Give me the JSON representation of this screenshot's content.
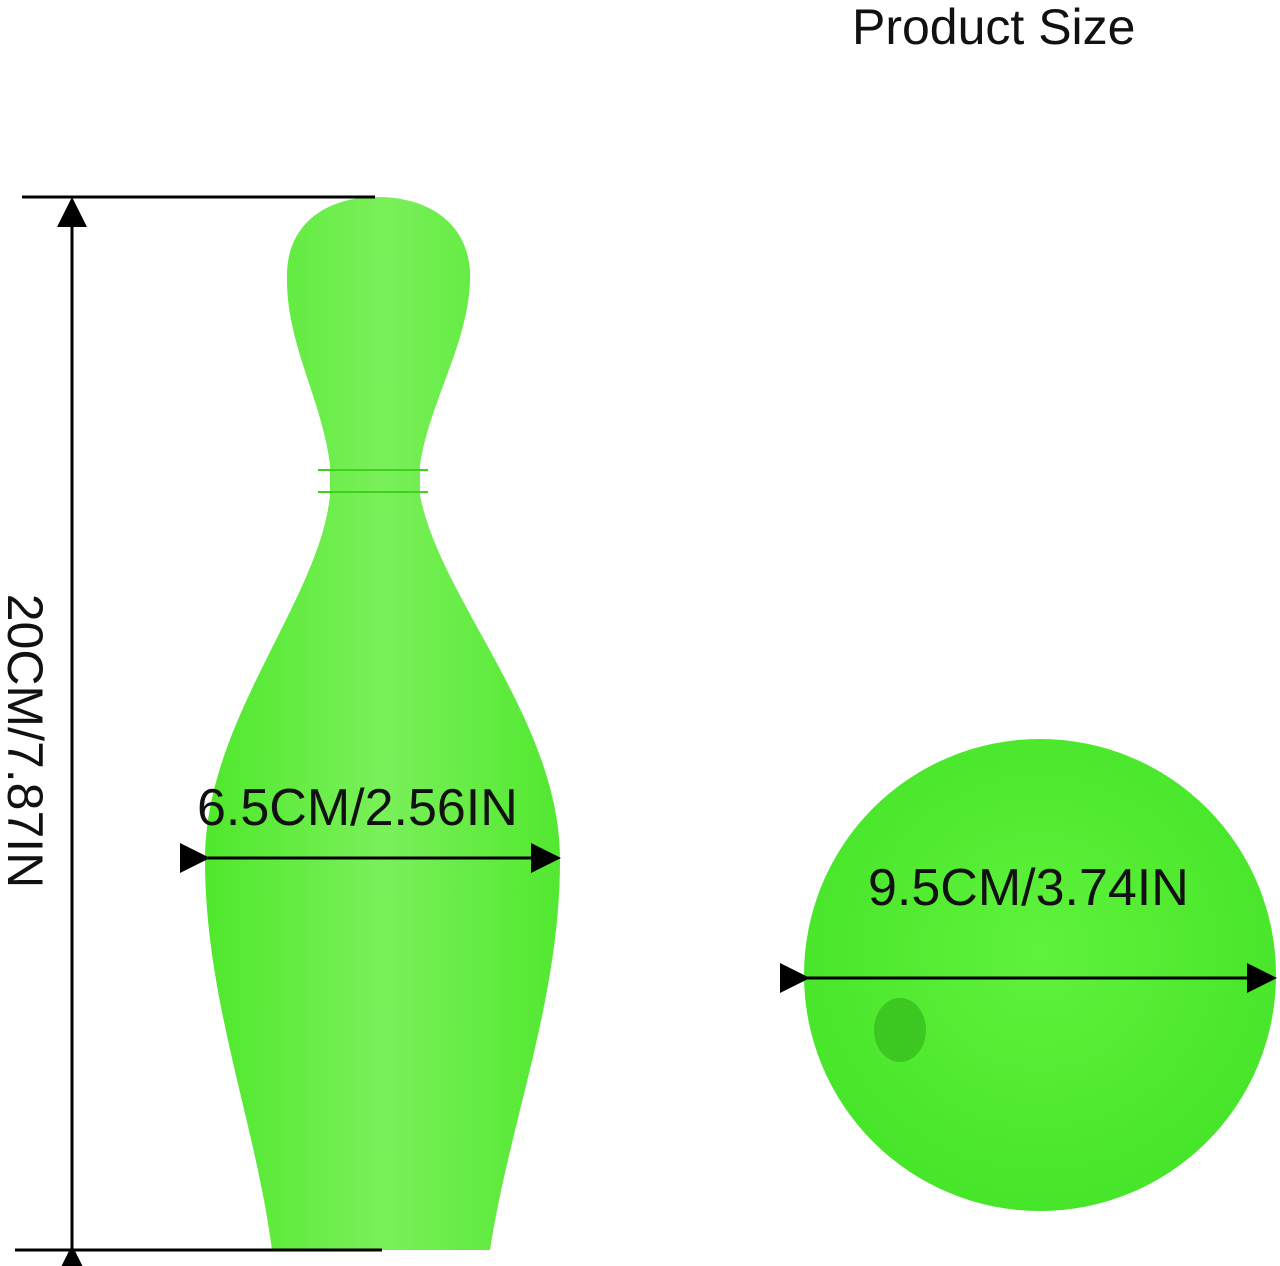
{
  "title": "Product Size",
  "pin": {
    "height_label": "20CM/7.87IN",
    "width_label": "6.5CM/2.56IN"
  },
  "ball": {
    "diameter_label": "9.5CM/3.74IN"
  },
  "colors": {
    "product_green": "#5ef03a",
    "line": "#000000"
  }
}
